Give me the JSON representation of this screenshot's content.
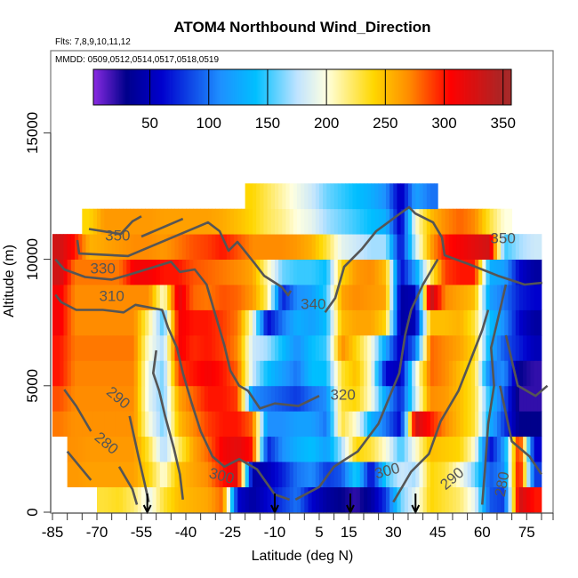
{
  "title": "ATOM4 Northbound Wind_Direction",
  "flights_note": "Flts: 7,8,9,10,11,12",
  "dates_note": "MMDD: 0509,0512,0514,0517,0518,0519",
  "chart_data": {
    "type": "heatmap",
    "title": "ATOM4 Northbound Wind_Direction",
    "xlabel": "Latitude (deg N)",
    "ylabel": "Altitude (m)",
    "xlim": [
      -85.5,
      84
    ],
    "ylim": [
      0,
      18300
    ],
    "x_ticks": [
      -85,
      -80,
      -75,
      -70,
      -65,
      -60,
      -55,
      -50,
      -45,
      -40,
      -35,
      -30,
      -25,
      -20,
      -15,
      -10,
      -5,
      0,
      5,
      10,
      15,
      20,
      25,
      30,
      35,
      40,
      45,
      50,
      55,
      60,
      65,
      70,
      75,
      80
    ],
    "x_tick_labels": [
      "-85",
      "-70",
      "-55",
      "-40",
      "-25",
      "-10",
      "5",
      "15",
      "30",
      "45",
      "60",
      "75"
    ],
    "x_tick_label_values": [
      -85,
      -70,
      -55,
      -40,
      -25,
      -10,
      5,
      15,
      30,
      45,
      60,
      75
    ],
    "y_ticks": [
      0,
      5000,
      10000,
      15000
    ],
    "y_tick_labels": [
      "0",
      "5000",
      "10000",
      "15000"
    ],
    "colorbar": {
      "range": [
        2,
        357
      ],
      "ticks": [
        50,
        100,
        150,
        200,
        250,
        300,
        350
      ],
      "tick_labels": [
        "50",
        "100",
        "150",
        "200",
        "250",
        "300",
        "350"
      ],
      "colors": [
        {
          "v": 2,
          "c": "#8a2be2"
        },
        {
          "v": 30,
          "c": "#00008b"
        },
        {
          "v": 60,
          "c": "#0000cd"
        },
        {
          "v": 110,
          "c": "#1e90ff"
        },
        {
          "v": 140,
          "c": "#00bfff"
        },
        {
          "v": 175,
          "c": "#bfe3ff"
        },
        {
          "v": 200,
          "c": "#ffffe0"
        },
        {
          "v": 240,
          "c": "#ffd700"
        },
        {
          "v": 270,
          "c": "#ff8c00"
        },
        {
          "v": 305,
          "c": "#ff0000"
        },
        {
          "v": 345,
          "c": "#b22222"
        },
        {
          "v": 357,
          "c": "#a52a2a"
        }
      ]
    },
    "lat_bins": [
      -82.5,
      -77.5,
      -72.5,
      -67.5,
      -62.5,
      -57.5,
      -52.5,
      -47.5,
      -42.5,
      -37.5,
      -32.5,
      -27.5,
      -22.5,
      -17.5,
      -12.5,
      -7.5,
      -2.5,
      2.5,
      7.5,
      12.5,
      17.5,
      22.5,
      27.5,
      32.5,
      37.5,
      42.5,
      47.5,
      52.5,
      57.5,
      62.5,
      67.5,
      72.5,
      77.5
    ],
    "lat_bin_width": 5,
    "altitudes": [
      500,
      1500,
      2500,
      3500,
      4500,
      5500,
      6500,
      7500,
      8500,
      9500,
      10500,
      11500,
      12500
    ],
    "alt_bin_height": 1000,
    "values": [
      [
        null,
        null,
        null,
        230,
        235,
        220,
        190,
        230,
        250,
        255,
        260,
        280,
        60,
        40,
        60,
        80,
        100,
        60,
        40,
        30,
        20,
        40,
        80,
        160,
        190,
        240,
        230,
        220,
        190,
        90,
        80,
        330,
        300
      ],
      [
        null,
        265,
        262,
        262,
        262,
        262,
        240,
        200,
        250,
        260,
        270,
        300,
        320,
        40,
        50,
        70,
        100,
        110,
        80,
        90,
        150,
        60,
        150,
        180,
        170,
        240,
        230,
        200,
        160,
        90,
        110,
        320,
        80
      ],
      [
        null,
        268,
        265,
        265,
        265,
        265,
        230,
        170,
        220,
        260,
        280,
        310,
        320,
        300,
        70,
        110,
        130,
        140,
        120,
        170,
        240,
        230,
        200,
        150,
        200,
        250,
        245,
        240,
        200,
        60,
        120,
        310,
        60
      ],
      [
        275,
        268,
        268,
        268,
        268,
        268,
        200,
        160,
        250,
        270,
        290,
        300,
        300,
        280,
        110,
        110,
        120,
        120,
        100,
        230,
        200,
        130,
        100,
        60,
        330,
        300,
        270,
        250,
        230,
        130,
        80,
        30,
        30
      ],
      [
        285,
        270,
        270,
        270,
        270,
        270,
        190,
        160,
        260,
        280,
        300,
        300,
        290,
        110,
        100,
        90,
        80,
        100,
        110,
        230,
        240,
        200,
        120,
        70,
        180,
        270,
        265,
        250,
        230,
        140,
        90,
        20,
        20
      ],
      [
        300,
        272,
        272,
        272,
        272,
        272,
        190,
        160,
        290,
        300,
        310,
        300,
        280,
        180,
        140,
        120,
        100,
        140,
        140,
        230,
        250,
        200,
        60,
        50,
        190,
        280,
        270,
        250,
        230,
        100,
        110,
        30,
        20
      ],
      [
        300,
        275,
        275,
        275,
        275,
        275,
        200,
        170,
        310,
        295,
        300,
        290,
        270,
        180,
        170,
        140,
        110,
        140,
        150,
        270,
        240,
        200,
        120,
        50,
        100,
        280,
        270,
        260,
        240,
        130,
        90,
        70,
        50
      ],
      [
        310,
        270,
        270,
        270,
        270,
        270,
        215,
        150,
        310,
        300,
        300,
        290,
        275,
        200,
        60,
        100,
        130,
        120,
        140,
        250,
        260,
        260,
        240,
        40,
        50,
        250,
        250,
        255,
        230,
        140,
        110,
        60,
        40
      ],
      [
        310,
        270,
        270,
        270,
        270,
        270,
        270,
        200,
        320,
        280,
        275,
        285,
        280,
        265,
        220,
        70,
        110,
        120,
        150,
        260,
        270,
        265,
        260,
        40,
        50,
        340,
        270,
        260,
        250,
        120,
        100,
        70,
        60
      ],
      [
        330,
        275,
        275,
        275,
        275,
        310,
        310,
        300,
        300,
        285,
        280,
        275,
        270,
        260,
        210,
        160,
        150,
        150,
        140,
        240,
        265,
        270,
        250,
        60,
        120,
        220,
        290,
        300,
        300,
        130,
        120,
        60,
        40
      ],
      [
        330,
        300,
        255,
        260,
        265,
        270,
        270,
        265,
        275,
        285,
        290,
        300,
        285,
        270,
        270,
        270,
        265,
        255,
        230,
        190,
        180,
        170,
        170,
        60,
        180,
        260,
        300,
        310,
        320,
        330,
        150,
        170,
        180
      ],
      [
        null,
        null,
        240,
        265,
        265,
        265,
        265,
        262,
        262,
        262,
        262,
        258,
        250,
        240,
        225,
        215,
        200,
        190,
        170,
        160,
        150,
        140,
        130,
        50,
        200,
        250,
        270,
        280,
        270,
        230,
        200,
        null,
        null
      ],
      [
        null,
        null,
        null,
        null,
        null,
        null,
        null,
        null,
        null,
        null,
        null,
        null,
        null,
        240,
        225,
        210,
        195,
        180,
        160,
        150,
        140,
        130,
        110,
        50,
        120,
        100,
        null,
        null,
        null,
        null,
        null,
        null,
        null
      ]
    ],
    "contour_color": "#555555",
    "contours": [
      [
        [
          -72.7,
          11200
        ],
        [
          -62,
          11000
        ],
        [
          -58,
          11500
        ],
        [
          -55,
          11700
        ]
      ],
      [
        [
          -55,
          10900
        ],
        [
          -41,
          11600
        ]
      ],
      [
        [
          -76.6,
          10760
        ],
        [
          -76,
          10230
        ],
        [
          -59.5,
          10130
        ],
        [
          -32.5,
          11460
        ],
        [
          -28.6,
          11110
        ],
        [
          -25.6,
          10340
        ],
        [
          -22.6,
          10690
        ],
        [
          -20.2,
          10340
        ],
        [
          -16.6,
          9810
        ],
        [
          -13.6,
          9350
        ],
        [
          -7.6,
          8900
        ],
        [
          -5.5,
          8580
        ],
        [
          -4.6,
          8760
        ]
      ],
      [
        [
          7,
          7900
        ],
        [
          10.4,
          8470
        ],
        [
          13.4,
          9700
        ],
        [
          19.4,
          10410
        ],
        [
          24.2,
          11110
        ],
        [
          32.3,
          11810
        ],
        [
          35.3,
          12060
        ],
        [
          37.4,
          11810
        ],
        [
          43.4,
          11460
        ],
        [
          46.4,
          10870
        ],
        [
          47.3,
          10160
        ],
        [
          55.4,
          9810
        ],
        [
          65.3,
          9350
        ],
        [
          74.3,
          9000
        ],
        [
          80.3,
          9070
        ]
      ],
      [
        [
          -84,
          10000
        ],
        [
          -81,
          9600
        ],
        [
          -74,
          9300
        ],
        [
          -65,
          9200
        ],
        [
          -59,
          9400
        ],
        [
          -45,
          9900
        ],
        [
          -42,
          9500
        ],
        [
          -37,
          9600
        ],
        [
          -33,
          9000
        ],
        [
          -30,
          7800
        ],
        [
          -27,
          6600
        ],
        [
          -25,
          5600
        ],
        [
          -22,
          5000
        ],
        [
          -19,
          4800
        ],
        [
          -15,
          4100
        ],
        [
          -10,
          4300
        ],
        [
          -2,
          4200
        ],
        [
          5,
          4600
        ]
      ],
      [
        [
          -84,
          8600
        ],
        [
          -82,
          8300
        ],
        [
          -77,
          8000
        ],
        [
          -68,
          8000
        ],
        [
          -61,
          7900
        ],
        [
          -57,
          8200
        ],
        [
          -48,
          8000
        ],
        [
          -46,
          7300
        ],
        [
          -43,
          6500
        ],
        [
          -41,
          5500
        ],
        [
          -38,
          4300
        ],
        [
          -35,
          3200
        ],
        [
          -31,
          2200
        ],
        [
          -27,
          1800
        ],
        [
          -22,
          2100
        ],
        [
          -16,
          1700
        ],
        [
          -10,
          700
        ],
        [
          -5,
          500
        ]
      ],
      [
        [
          -81,
          4850
        ],
        [
          -77,
          4200
        ],
        [
          -72,
          3200
        ]
      ],
      [
        [
          -59,
          3800
        ],
        [
          -56,
          2200
        ],
        [
          -54,
          1200
        ],
        [
          -52.5,
          400
        ]
      ],
      [
        [
          -80,
          2400
        ],
        [
          -72,
          1270
        ]
      ],
      [
        [
          -62.5,
          1800
        ],
        [
          -58,
          900
        ],
        [
          -56.5,
          300
        ]
      ],
      [
        [
          -50,
          6400
        ],
        [
          -51,
          5500
        ],
        [
          -49,
          4800
        ],
        [
          -47,
          3800
        ],
        [
          -44,
          2500
        ],
        [
          -42,
          1500
        ],
        [
          -41,
          500
        ]
      ],
      [
        [
          -3,
          500
        ],
        [
          5,
          1000
        ],
        [
          10,
          1800
        ],
        [
          18,
          2400
        ],
        [
          25,
          3500
        ],
        [
          32,
          5500
        ],
        [
          34,
          7000
        ],
        [
          36,
          8000
        ],
        [
          40,
          9000
        ],
        [
          45,
          10000
        ]
      ],
      [
        [
          30,
          400
        ],
        [
          36,
          1600
        ],
        [
          42,
          2300
        ],
        [
          46,
          3600
        ],
        [
          52,
          4800
        ],
        [
          56,
          6000
        ],
        [
          60,
          7200
        ],
        [
          62,
          8000
        ]
      ],
      [
        [
          60,
          300
        ],
        [
          61,
          1800
        ],
        [
          62,
          3500
        ],
        [
          64,
          5000
        ],
        [
          63,
          6500
        ],
        [
          66,
          8000
        ],
        [
          68,
          9000
        ]
      ],
      [
        [
          68,
          7000
        ],
        [
          72,
          5000
        ],
        [
          78,
          4600
        ],
        [
          82,
          5000
        ]
      ],
      [
        [
          66,
          5000
        ],
        [
          70,
          2800
        ],
        [
          76,
          2200
        ],
        [
          80,
          1500
        ]
      ]
    ],
    "contour_labels": [
      {
        "text": "350",
        "lat": -63,
        "alt": 10900
      },
      {
        "text": "330",
        "lat": -68,
        "alt": 9600
      },
      {
        "text": "310",
        "lat": -65,
        "alt": 8500
      },
      {
        "text": "340",
        "lat": 3,
        "alt": 8200
      },
      {
        "text": "320",
        "lat": 13,
        "alt": 4600
      },
      {
        "text": "290",
        "lat": -63,
        "alt": 4500,
        "rotate": 40
      },
      {
        "text": "280",
        "lat": -67,
        "alt": 2700,
        "rotate": 40
      },
      {
        "text": "300",
        "lat": -28,
        "alt": 1400,
        "rotate": 15
      },
      {
        "text": "300",
        "lat": 28,
        "alt": 1600,
        "rotate": -15
      },
      {
        "text": "290",
        "lat": 50,
        "alt": 1300,
        "rotate": -40
      },
      {
        "text": "280",
        "lat": 67,
        "alt": 1100,
        "rotate": -80
      },
      {
        "text": "350",
        "lat": 67,
        "alt": 10800
      }
    ],
    "markers_lat": [
      -53,
      -10,
      15.5,
      37.5
    ]
  }
}
